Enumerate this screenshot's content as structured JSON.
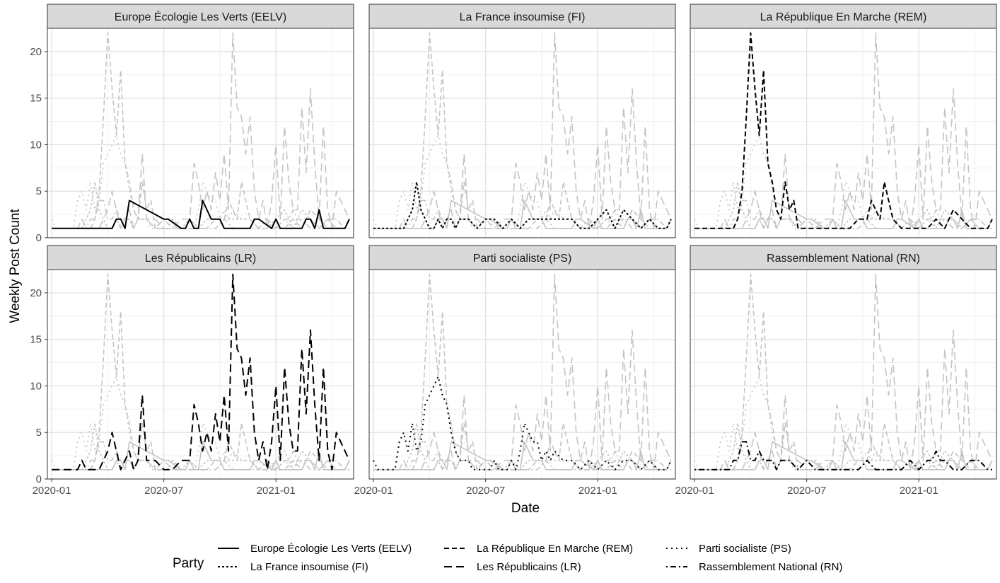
{
  "chart_data": {
    "type": "line",
    "ylabel": "Weekly Post Count",
    "xlabel": "Date",
    "x_ticks": [
      "2020-01",
      "2020-07",
      "2021-01"
    ],
    "y_ticks": [
      0,
      5,
      10,
      15,
      20
    ],
    "ylim": [
      0,
      22.5
    ],
    "xlim": [
      -1,
      70
    ],
    "legend": {
      "title": "Party",
      "placement": "bottom",
      "entries": [
        {
          "name": "Europe Écologie Les Verts (EELV)",
          "dash": "solid"
        },
        {
          "name": "La France insoumise (FI)",
          "dash": "dotdense"
        },
        {
          "name": "La République En Marche (REM)",
          "dash": "dashmed"
        },
        {
          "name": "Les Républicains (LR)",
          "dash": "dashlong"
        },
        {
          "name": "Parti socialiste (PS)",
          "dash": "dotted"
        },
        {
          "name": "Rassemblement National (RN)",
          "dash": "dotdash"
        }
      ]
    },
    "x_tick_positions_weeks": [
      0,
      26,
      52
    ],
    "series": [
      {
        "name": "Europe Écologie Les Verts (EELV)",
        "dash": "solid",
        "x": [
          0,
          12,
          14,
          15,
          16,
          17,
          18,
          26,
          27,
          30,
          31,
          32,
          33,
          34,
          35,
          36,
          37,
          39,
          40,
          41,
          43,
          44,
          45,
          46,
          47,
          48,
          51,
          52,
          53,
          55,
          56,
          57,
          58,
          59,
          60,
          61,
          62,
          63,
          64,
          65,
          66,
          67,
          68,
          69
        ],
        "y": [
          1,
          1,
          1,
          2,
          2,
          1,
          4,
          2,
          2,
          1,
          1,
          2,
          1,
          1,
          4,
          3,
          2,
          2,
          1,
          1,
          1,
          1,
          1,
          1,
          2,
          2,
          1,
          2,
          1,
          1,
          1,
          1,
          1,
          2,
          2,
          1,
          3,
          1,
          1,
          1,
          1,
          1,
          1,
          2
        ]
      },
      {
        "name": "La France insoumise (FI)",
        "dash": "dotdense",
        "x": [
          0,
          1,
          3,
          4,
          5,
          6,
          7,
          8,
          9,
          10,
          11,
          12,
          13,
          14,
          15,
          16,
          17,
          18,
          19,
          20,
          22,
          24,
          26,
          28,
          30,
          32,
          34,
          36,
          38,
          40,
          42,
          44,
          46,
          48,
          50,
          52,
          54,
          55,
          56,
          58,
          60,
          62,
          64,
          66,
          68,
          69
        ],
        "y": [
          1,
          1,
          1,
          1,
          1,
          1,
          1,
          2,
          3,
          6,
          3,
          2,
          1,
          1,
          2,
          1,
          2,
          2,
          1,
          2,
          2,
          1,
          2,
          2,
          1,
          2,
          1,
          2,
          2,
          2,
          2,
          2,
          2,
          1,
          1,
          2,
          3,
          2,
          1,
          3,
          2,
          1,
          2,
          1,
          1,
          2
        ]
      },
      {
        "name": "La République En Marche (REM)",
        "dash": "dashmed",
        "x": [
          0,
          6,
          8,
          9,
          10,
          11,
          12,
          13,
          14,
          15,
          16,
          17,
          18,
          19,
          20,
          21,
          22,
          23,
          24,
          26,
          28,
          30,
          36,
          38,
          39,
          40,
          41,
          42,
          43,
          44,
          46,
          48,
          50,
          54,
          56,
          58,
          60,
          62,
          64,
          66,
          68,
          69
        ],
        "y": [
          1,
          1,
          1,
          1,
          2,
          5,
          13,
          22,
          16,
          11,
          18,
          8,
          6,
          3,
          2,
          6,
          3,
          4,
          1,
          1,
          1,
          1,
          1,
          2,
          2,
          2,
          4,
          3,
          2,
          6,
          2,
          1,
          1,
          1,
          2,
          1,
          3,
          2,
          1,
          1,
          1,
          2
        ]
      },
      {
        "name": "Les Républicains (LR)",
        "dash": "dashlong",
        "x": [
          0,
          3,
          6,
          7,
          8,
          9,
          10,
          11,
          12,
          13,
          14,
          15,
          16,
          17,
          18,
          19,
          20,
          21,
          22,
          24,
          26,
          28,
          30,
          32,
          33,
          34,
          35,
          36,
          37,
          38,
          39,
          40,
          41,
          42,
          43,
          44,
          45,
          46,
          47,
          48,
          49,
          50,
          51,
          52,
          53,
          54,
          55,
          56,
          57,
          58,
          59,
          60,
          61,
          62,
          63,
          64,
          65,
          66,
          67,
          68,
          69
        ],
        "y": [
          1,
          1,
          1,
          2,
          1,
          1,
          1,
          1,
          2,
          3,
          5,
          3,
          1,
          2,
          3,
          1,
          2,
          9,
          2,
          2,
          1,
          1,
          2,
          2,
          8,
          6,
          3,
          5,
          3,
          7,
          4,
          9,
          3,
          22,
          14,
          13,
          9,
          13,
          5,
          2,
          4,
          1,
          4,
          10,
          2,
          12,
          6,
          3,
          3,
          14,
          7,
          16,
          8,
          2,
          12,
          3,
          1,
          5,
          4,
          3,
          2
        ]
      },
      {
        "name": "Parti socialiste (PS)",
        "dash": "dotted",
        "x": [
          0,
          1,
          2,
          3,
          4,
          5,
          6,
          7,
          8,
          9,
          10,
          11,
          12,
          13,
          14,
          15,
          16,
          17,
          18,
          19,
          20,
          21,
          22,
          23,
          24,
          25,
          26,
          27,
          28,
          29,
          30,
          31,
          32,
          33,
          34,
          35,
          36,
          37,
          38,
          39,
          40,
          41,
          42,
          44,
          46,
          48,
          50,
          52,
          54,
          56,
          58,
          60,
          62,
          64,
          66,
          68,
          69
        ],
        "y": [
          2,
          1,
          1,
          1,
          1,
          1,
          4,
          5,
          3,
          6,
          3,
          4,
          8,
          9,
          10,
          11,
          9,
          8,
          5,
          3,
          2,
          2,
          2,
          1,
          1,
          1,
          1,
          1,
          2,
          1,
          1,
          1,
          2,
          1,
          3,
          6,
          5,
          4,
          4,
          2,
          3,
          2,
          3,
          2,
          2,
          1,
          2,
          1,
          2,
          1,
          2,
          2,
          1,
          2,
          1,
          1,
          2
        ]
      },
      {
        "name": "Rassemblement National (RN)",
        "dash": "dotdash",
        "x": [
          0,
          3,
          6,
          8,
          9,
          10,
          11,
          12,
          13,
          14,
          15,
          16,
          17,
          18,
          19,
          20,
          22,
          24,
          26,
          28,
          30,
          32,
          34,
          36,
          38,
          40,
          42,
          44,
          46,
          48,
          50,
          52,
          54,
          55,
          56,
          57,
          58,
          60,
          62,
          64,
          66,
          68,
          69
        ],
        "y": [
          1,
          1,
          1,
          1,
          2,
          2,
          4,
          4,
          2,
          2,
          3,
          2,
          2,
          2,
          1,
          2,
          2,
          1,
          2,
          1,
          1,
          1,
          1,
          1,
          1,
          2,
          1,
          1,
          1,
          1,
          2,
          1,
          2,
          2,
          3,
          2,
          2,
          1,
          1,
          2,
          2,
          1,
          1
        ]
      }
    ]
  }
}
